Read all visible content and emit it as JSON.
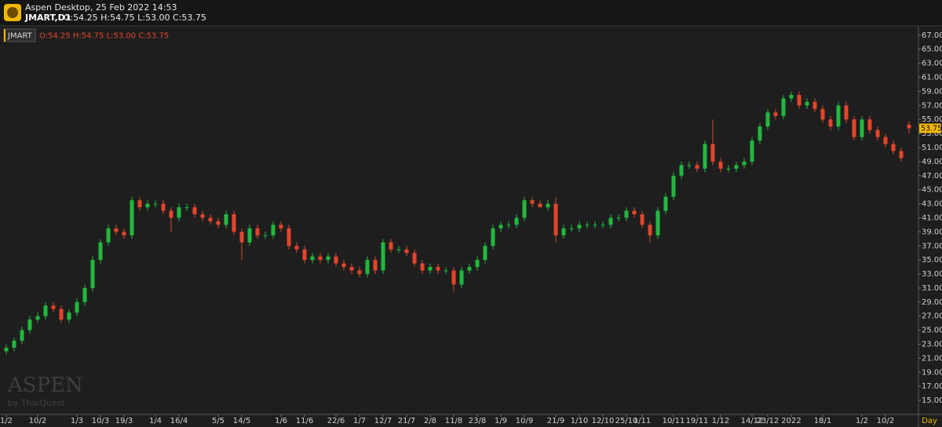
{
  "chart_data": {
    "type": "candlestick",
    "title": "Aspen Desktop, 25 Feb 2022 14:53",
    "symbol": "JMART,D1",
    "ohlc_text": "O:54.25 H:54.75 L:53.00 C:53.75",
    "legend_symbol": "JMART",
    "legend_ohlc": "O:54.25 H:54.75 L:53.00 C:53.75",
    "price_tag": "53.75",
    "x_unit": "Day",
    "watermark": "ASPEN",
    "watermark_sub": "by ThaiQuest",
    "up_color": "#21b83f",
    "down_color": "#e2452c",
    "categories": [
      "1/2",
      null,
      null,
      null,
      "10/2",
      null,
      null,
      null,
      null,
      "1/3",
      null,
      null,
      "10/3",
      null,
      null,
      "19/3",
      null,
      null,
      null,
      "1/4",
      null,
      null,
      "16/4",
      null,
      null,
      null,
      null,
      "5/5",
      null,
      null,
      "14/5",
      null,
      null,
      null,
      null,
      "1/6",
      null,
      null,
      "11/6",
      null,
      null,
      null,
      "22/6",
      null,
      null,
      "1/7",
      null,
      null,
      "12/7",
      null,
      null,
      "21/7",
      null,
      null,
      "2/8",
      null,
      null,
      "11/8",
      null,
      null,
      "23/8",
      null,
      null,
      "1/9",
      null,
      null,
      "10/9",
      null,
      null,
      null,
      "21/9",
      null,
      null,
      "1/10",
      null,
      null,
      "12/10",
      null,
      null,
      "25/10",
      null,
      "1/11",
      null,
      null,
      null,
      "10/11",
      null,
      null,
      "19/11",
      null,
      null,
      "1/12",
      null,
      null,
      null,
      "14/12",
      null,
      "23/12",
      null,
      null,
      "2022",
      null,
      null,
      null,
      "18/1",
      null,
      null,
      null,
      null,
      "1/2",
      null,
      null,
      "10/2",
      null,
      null,
      null
    ],
    "open": [
      22,
      22.5,
      23.5,
      25,
      26.5,
      27,
      28.5,
      28,
      26.5,
      27.5,
      29,
      31,
      35,
      37.5,
      39.5,
      39,
      38.5,
      43.5,
      42.5,
      43,
      43,
      42,
      41,
      42.5,
      42.5,
      41.5,
      41,
      40.5,
      40,
      41.5,
      39,
      37.5,
      39.5,
      38.5,
      38.5,
      40,
      39.5,
      37,
      36.5,
      35,
      35.5,
      35,
      35.5,
      34.5,
      34,
      33.5,
      33,
      35,
      33.5,
      37.5,
      36.5,
      36.5,
      36,
      34.5,
      33.5,
      34,
      33.5,
      33.5,
      31.5,
      33.5,
      34,
      35,
      37,
      39.5,
      40,
      40,
      41,
      43.5,
      43,
      42.5,
      43,
      38.5,
      39.5,
      39.5,
      40,
      40,
      40,
      40,
      41,
      41,
      42,
      41.5,
      40,
      38.5,
      42,
      44,
      47,
      48.5,
      48.5,
      48,
      51.5,
      49,
      48,
      48,
      48.5,
      49,
      52,
      54,
      56,
      55.5,
      58,
      58.5,
      57,
      57.5,
      56.5,
      55,
      54,
      57,
      55,
      52.5,
      55,
      53.5,
      52.5,
      51.5,
      50.5,
      54.25
    ],
    "high": [
      23,
      24,
      25.5,
      27,
      27.5,
      29,
      29,
      28.5,
      28,
      29.5,
      31.5,
      35.5,
      38,
      40,
      40,
      39.5,
      44,
      44,
      43.5,
      43.5,
      43.5,
      42.5,
      43,
      43,
      43,
      42,
      41.5,
      41,
      42,
      42,
      39.5,
      40,
      40,
      39,
      40.5,
      40.5,
      40,
      37.5,
      37,
      36,
      36,
      36,
      36,
      35,
      34.5,
      34,
      35.5,
      35.5,
      38,
      38,
      37,
      37,
      36.5,
      35,
      34.5,
      34.5,
      34,
      34,
      34,
      34.5,
      35.5,
      37.5,
      40,
      40.5,
      40.5,
      41.5,
      44,
      44,
      43.5,
      43.5,
      44,
      40,
      40,
      40.5,
      40.5,
      40.5,
      40.5,
      41.5,
      41.5,
      42.5,
      42.5,
      42,
      40.5,
      42.5,
      44.5,
      47.5,
      49,
      49,
      49,
      52,
      55,
      49.5,
      48.5,
      49,
      49.5,
      52.5,
      54.5,
      56.5,
      56.5,
      58.5,
      59,
      59,
      58,
      58,
      57,
      55.5,
      57.5,
      57.5,
      55.5,
      55.5,
      55.5,
      54,
      53,
      52,
      51,
      54.75
    ],
    "low": [
      21.5,
      22,
      23,
      24.5,
      26,
      26.5,
      27.5,
      26,
      26,
      27,
      28.5,
      30.5,
      34.5,
      37,
      38.5,
      38,
      38,
      42,
      42,
      42.5,
      41.5,
      39,
      40.5,
      42,
      41,
      40.5,
      40,
      39.5,
      39.5,
      38.5,
      35,
      37,
      38,
      38,
      38,
      39,
      36.5,
      36,
      34.5,
      34.5,
      34.5,
      34.5,
      34,
      33.5,
      33,
      32.5,
      32.5,
      33,
      33,
      36,
      36,
      35.5,
      34,
      33,
      33,
      33,
      33,
      30.5,
      31,
      33,
      33.5,
      34.5,
      36.5,
      39,
      39.5,
      39.5,
      40.5,
      42.5,
      42.5,
      42,
      37.5,
      38,
      39,
      39,
      39.5,
      39.5,
      39.5,
      39.5,
      40.5,
      40.5,
      41,
      39.5,
      37.5,
      38,
      41.5,
      43.5,
      46.5,
      48,
      47.5,
      47.5,
      48.5,
      47.5,
      47.5,
      47.5,
      48,
      48.5,
      51.5,
      53.5,
      55,
      55,
      57.5,
      56.5,
      56.5,
      56,
      54.5,
      53.5,
      53.5,
      54.5,
      52,
      52,
      53,
      52,
      51,
      50,
      49,
      53
    ],
    "close": [
      22.5,
      23.5,
      25,
      26.5,
      27,
      28.5,
      28,
      26.5,
      27.5,
      29,
      31,
      35,
      37.5,
      39.5,
      39,
      38.5,
      43.5,
      42.5,
      43,
      43,
      42,
      41,
      42.5,
      42.5,
      41.5,
      41,
      40.5,
      40,
      41.5,
      39,
      37.5,
      39.5,
      38.5,
      38.5,
      40,
      39.5,
      37,
      36.5,
      35,
      35.5,
      35,
      35.5,
      34.5,
      34,
      33.5,
      33,
      35,
      33.5,
      37.5,
      36.5,
      36.5,
      36,
      34.5,
      33.5,
      34,
      33.5,
      33.5,
      31.5,
      33.5,
      34,
      35,
      37,
      39.5,
      40,
      40,
      41,
      43.5,
      43,
      42.5,
      43,
      38.5,
      39.5,
      39.5,
      40,
      40,
      40,
      40,
      41,
      41,
      42,
      41.5,
      40,
      38.5,
      42,
      44,
      47,
      48.5,
      48.5,
      48,
      51.5,
      49,
      48,
      48,
      48.5,
      49,
      52,
      54,
      56,
      55.5,
      58,
      58.5,
      57,
      57.5,
      56.5,
      55,
      54,
      57,
      55,
      52.5,
      55,
      53.5,
      52.5,
      51.5,
      50.5,
      49.5,
      53.75
    ],
    "ylim": [
      13,
      68.1
    ],
    "yticks": [
      {
        "value": 15,
        "label": "15.00"
      },
      {
        "value": 17,
        "label": "17.00"
      },
      {
        "value": 19,
        "label": "19.00"
      },
      {
        "value": 21,
        "label": "21.00"
      },
      {
        "value": 23,
        "label": "23.00"
      },
      {
        "value": 25,
        "label": "25.00"
      },
      {
        "value": 27,
        "label": "27.00"
      },
      {
        "value": 29,
        "label": "29.00"
      },
      {
        "value": 31,
        "label": "31.00"
      },
      {
        "value": 33,
        "label": "33.00"
      },
      {
        "value": 35,
        "label": "35.00"
      },
      {
        "value": 37,
        "label": "37.00"
      },
      {
        "value": 39,
        "label": "39.00"
      },
      {
        "value": 41,
        "label": "41.00"
      },
      {
        "value": 43,
        "label": "43.00"
      },
      {
        "value": 45,
        "label": "45.00"
      },
      {
        "value": 47,
        "label": "47.00"
      },
      {
        "value": 49,
        "label": "49.00"
      },
      {
        "value": 51,
        "label": "51.00"
      },
      {
        "value": 53,
        "label": "53.00"
      },
      {
        "value": 55,
        "label": "55.00"
      },
      {
        "value": 57,
        "label": "57.00"
      },
      {
        "value": 59,
        "label": "59.00"
      },
      {
        "value": 61,
        "label": "61.00"
      },
      {
        "value": 63,
        "label": "63.00"
      },
      {
        "value": 65,
        "label": "65.00"
      },
      {
        "value": 67,
        "label": "67.00"
      }
    ],
    "grid": false
  }
}
